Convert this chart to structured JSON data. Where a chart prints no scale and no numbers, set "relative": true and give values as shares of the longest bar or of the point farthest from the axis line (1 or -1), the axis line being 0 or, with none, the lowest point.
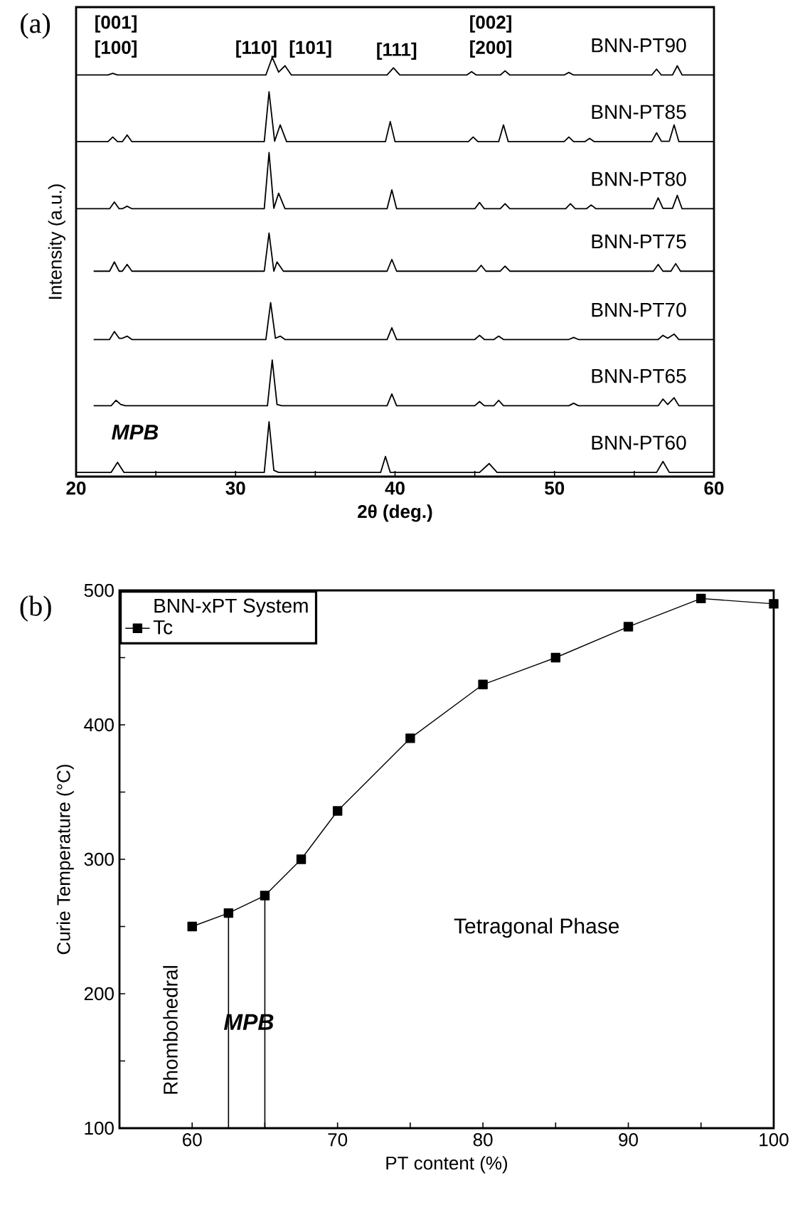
{
  "chart_data": [
    {
      "type": "line",
      "relative": true,
      "xlabel": "2θ (deg.)",
      "ylabel": "Intensity (a.u.)",
      "tick_labels": "x",
      "xlim": [
        20,
        60
      ],
      "xticks": [
        20,
        {
          "value": 25,
          "label": null
        },
        30,
        {
          "value": 35,
          "label": null
        },
        40,
        {
          "value": 45,
          "label": null
        },
        50,
        {
          "value": 55,
          "label": null
        },
        60
      ],
      "series": [
        {
          "name": "BNN-PT90",
          "color": "#000000",
          "x": [
            20,
            22.0,
            22.3,
            22.6,
            31.9,
            32.3,
            32.7,
            33.1,
            33.5,
            39.5,
            39.9,
            40.3,
            44.5,
            44.8,
            45.1,
            46.6,
            46.9,
            47.2,
            50.6,
            50.9,
            51.2,
            56.1,
            56.4,
            56.7,
            57.4,
            57.7,
            58.0,
            60
          ],
          "values": [
            0.958,
            0.958,
            0.962,
            0.958,
            0.958,
            1.0,
            0.965,
            0.98,
            0.958,
            0.958,
            0.975,
            0.958,
            0.958,
            0.966,
            0.958,
            0.958,
            0.968,
            0.958,
            0.958,
            0.964,
            0.958,
            0.958,
            0.972,
            0.958,
            0.958,
            0.98,
            0.958,
            0.958
          ]
        },
        {
          "name": "BNN-PT85",
          "color": "#000000",
          "x": [
            20,
            22.0,
            22.3,
            22.6,
            22.9,
            23.2,
            23.5,
            31.8,
            32.1,
            32.45,
            32.8,
            33.2,
            39.4,
            39.7,
            40.0,
            44.6,
            44.9,
            45.2,
            46.5,
            46.8,
            47.1,
            50.6,
            50.9,
            51.2,
            51.9,
            52.2,
            52.5,
            56.1,
            56.4,
            56.7,
            57.2,
            57.5,
            57.8,
            60
          ],
          "values": [
            0.799,
            0.799,
            0.81,
            0.799,
            0.799,
            0.815,
            0.799,
            0.799,
            0.918,
            0.8,
            0.839,
            0.799,
            0.799,
            0.847,
            0.799,
            0.799,
            0.81,
            0.799,
            0.799,
            0.839,
            0.799,
            0.799,
            0.81,
            0.799,
            0.799,
            0.807,
            0.799,
            0.799,
            0.82,
            0.8,
            0.8,
            0.839,
            0.799,
            0.799
          ]
        },
        {
          "name": "BNN-PT80",
          "color": "#000000",
          "x": [
            20,
            22.1,
            22.4,
            22.7,
            22.9,
            23.2,
            23.5,
            31.8,
            32.1,
            32.4,
            32.7,
            33.1,
            39.5,
            39.8,
            40.1,
            45.0,
            45.3,
            45.6,
            46.6,
            46.9,
            47.2,
            50.7,
            51.0,
            51.3,
            52.0,
            52.3,
            52.6,
            56.2,
            56.5,
            56.8,
            57.4,
            57.7,
            58.0,
            60
          ],
          "values": [
            0.639,
            0.639,
            0.655,
            0.639,
            0.639,
            0.645,
            0.639,
            0.639,
            0.773,
            0.64,
            0.676,
            0.639,
            0.639,
            0.684,
            0.639,
            0.639,
            0.654,
            0.639,
            0.639,
            0.651,
            0.639,
            0.639,
            0.651,
            0.639,
            0.639,
            0.648,
            0.639,
            0.639,
            0.665,
            0.64,
            0.64,
            0.671,
            0.639,
            0.639
          ]
        },
        {
          "name": "BNN-PT75",
          "color": "#000000",
          "x": [
            21.1,
            22.1,
            22.4,
            22.7,
            22.9,
            23.2,
            23.5,
            31.8,
            32.1,
            32.4,
            32.6,
            33.0,
            39.5,
            39.8,
            40.1,
            45.1,
            45.4,
            45.7,
            46.6,
            46.9,
            47.2,
            56.2,
            56.5,
            56.8,
            57.3,
            57.6,
            57.9,
            60
          ],
          "values": [
            0.49,
            0.49,
            0.512,
            0.49,
            0.49,
            0.506,
            0.49,
            0.49,
            0.581,
            0.49,
            0.512,
            0.49,
            0.49,
            0.518,
            0.49,
            0.49,
            0.504,
            0.49,
            0.49,
            0.502,
            0.49,
            0.49,
            0.506,
            0.49,
            0.49,
            0.508,
            0.49,
            0.49
          ]
        },
        {
          "name": "BNN-PT70",
          "color": "#000000",
          "x": [
            21.1,
            22.1,
            22.4,
            22.7,
            22.9,
            23.2,
            23.5,
            31.9,
            32.2,
            32.5,
            32.8,
            33.1,
            39.5,
            39.8,
            40.1,
            45.0,
            45.3,
            45.6,
            46.2,
            46.5,
            46.8,
            50.9,
            51.2,
            51.5,
            56.5,
            56.8,
            57.1,
            57.5,
            57.8,
            60
          ],
          "values": [
            0.327,
            0.327,
            0.346,
            0.33,
            0.33,
            0.335,
            0.327,
            0.327,
            0.415,
            0.33,
            0.335,
            0.327,
            0.327,
            0.355,
            0.327,
            0.327,
            0.337,
            0.327,
            0.327,
            0.335,
            0.327,
            0.327,
            0.332,
            0.327,
            0.327,
            0.337,
            0.33,
            0.34,
            0.327,
            0.327
          ]
        },
        {
          "name": "BNN-PT65",
          "color": "#000000",
          "x": [
            21.1,
            22.2,
            22.5,
            22.8,
            23.1,
            32.0,
            32.3,
            32.6,
            32.9,
            39.5,
            39.8,
            40.1,
            45.0,
            45.3,
            45.6,
            46.2,
            46.5,
            46.8,
            50.9,
            51.2,
            51.5,
            56.5,
            56.8,
            57.1,
            57.5,
            57.8,
            60
          ],
          "values": [
            0.169,
            0.169,
            0.182,
            0.172,
            0.169,
            0.169,
            0.278,
            0.172,
            0.169,
            0.169,
            0.197,
            0.169,
            0.169,
            0.179,
            0.169,
            0.169,
            0.182,
            0.169,
            0.169,
            0.175,
            0.169,
            0.169,
            0.185,
            0.172,
            0.188,
            0.169,
            0.169
          ]
        },
        {
          "name": "BNN-PT60",
          "color": "#000000",
          "x": [
            20,
            22.2,
            22.6,
            23.0,
            31.8,
            32.1,
            32.4,
            32.7,
            39.1,
            39.4,
            39.7,
            45.3,
            45.9,
            46.4,
            56.4,
            56.8,
            57.2,
            60
          ],
          "values": [
            0.01,
            0.01,
            0.034,
            0.01,
            0.01,
            0.131,
            0.015,
            0.01,
            0.01,
            0.048,
            0.01,
            0.01,
            0.031,
            0.01,
            0.01,
            0.036,
            0.01,
            0.01
          ]
        }
      ],
      "annotations": [
        "(a)",
        "[001]",
        "[100]",
        "[110]",
        "[101]",
        "[111]",
        "[002]",
        "[200]",
        "MPB"
      ]
    },
    {
      "type": "line",
      "xlabel": "PT content (%)",
      "ylabel": "Curie Temperature (°C)",
      "legend": "top left",
      "legend_title": "BNN-xPT System",
      "marker": "square",
      "line_style": "solid",
      "xlim": [
        55,
        100
      ],
      "xticks": [
        60,
        {
          "value": 65,
          "label": null
        },
        70,
        {
          "value": 75,
          "label": null
        },
        80,
        {
          "value": 85,
          "label": null
        },
        90,
        {
          "value": 95,
          "label": null
        },
        100
      ],
      "ylim": [
        100,
        500
      ],
      "yticks": [
        100,
        {
          "value": 150,
          "label": null
        },
        200,
        {
          "value": 250,
          "label": null
        },
        300,
        {
          "value": 350,
          "label": null
        },
        400,
        {
          "value": 450,
          "label": null
        },
        500
      ],
      "series": [
        {
          "name": "Tc",
          "color": "#000000",
          "x": [
            60,
            62.5,
            65,
            67.5,
            70,
            75,
            80,
            85,
            90,
            95,
            100
          ],
          "values": [
            250,
            260,
            273,
            300,
            336,
            390,
            430,
            450,
            473,
            494,
            490
          ]
        }
      ],
      "ref_lines": [
        {
          "axis": "x",
          "value": 62.5
        },
        {
          "axis": "x",
          "value": 65
        }
      ],
      "annotations": [
        "(b)",
        "Rhombohedral",
        "MPB",
        "Tetragonal Phase"
      ]
    }
  ]
}
